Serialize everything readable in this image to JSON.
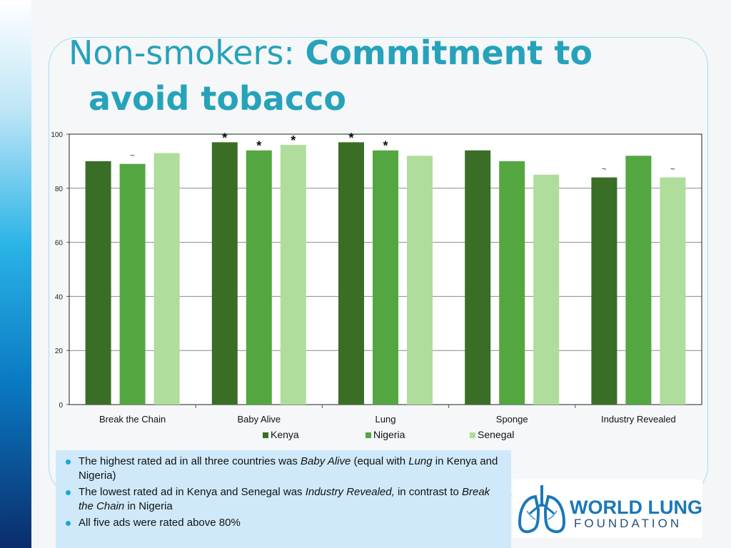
{
  "slide": {
    "title_normal": "Non-smokers: ",
    "title_bold_1": "Commitment to",
    "title_bold_2": "avoid tobacco"
  },
  "chart_data": {
    "type": "bar",
    "categories": [
      "Break the Chain",
      "Baby Alive",
      "Lung",
      "Sponge",
      "Industry Revealed"
    ],
    "series": [
      {
        "name": "Kenya",
        "color": "#3a6e26",
        "values": [
          90,
          97,
          97,
          94,
          84
        ]
      },
      {
        "name": "Nigeria",
        "color": "#54a740",
        "values": [
          89,
          94,
          94,
          90,
          92
        ]
      },
      {
        "name": "Senegal",
        "color": "#afdd9b",
        "values": [
          93,
          96,
          92,
          85,
          84
        ]
      }
    ],
    "annotations": [
      {
        "category": "Break the Chain",
        "series": "Nigeria",
        "text": "~"
      },
      {
        "category": "Baby Alive",
        "series": "Kenya",
        "text": "*"
      },
      {
        "category": "Baby Alive",
        "series": "Nigeria",
        "text": "*"
      },
      {
        "category": "Baby Alive",
        "series": "Senegal",
        "text": "*"
      },
      {
        "category": "Lung",
        "series": "Kenya",
        "text": "*"
      },
      {
        "category": "Lung",
        "series": "Nigeria",
        "text": "*"
      },
      {
        "category": "Industry Revealed",
        "series": "Kenya",
        "text": "~"
      },
      {
        "category": "Industry Revealed",
        "series": "Senegal",
        "text": "~"
      }
    ],
    "ylim": [
      0,
      100
    ],
    "yticks": [
      0,
      20,
      40,
      60,
      80,
      100
    ],
    "grid": true,
    "legend": "bottom"
  },
  "bullets": [
    {
      "parts": [
        {
          "text": "The highest rated ad in all three countries was ",
          "italic": false
        },
        {
          "text": "Baby Alive",
          "italic": true
        },
        {
          "text": " (equal with ",
          "italic": false
        },
        {
          "text": "Lung",
          "italic": true
        },
        {
          "text": " in Kenya and Nigeria)",
          "italic": false
        }
      ]
    },
    {
      "parts": [
        {
          "text": "The lowest rated ad in Kenya and Senegal was ",
          "italic": false
        },
        {
          "text": "Industry Revealed,",
          "italic": true
        },
        {
          "text": " in contrast to ",
          "italic": false
        },
        {
          "text": "Break the Chain",
          "italic": true
        },
        {
          "text": " in Nigeria",
          "italic": false
        }
      ]
    },
    {
      "parts": [
        {
          "text": "All five ads were rated above 80%",
          "italic": false
        }
      ]
    }
  ],
  "logo": {
    "line1": "WORLD LUNG",
    "line2": "FOUNDATION",
    "icon": "lungs-icon",
    "colors": {
      "primary": "#1b78b8",
      "secondary": "#244f7a"
    }
  }
}
